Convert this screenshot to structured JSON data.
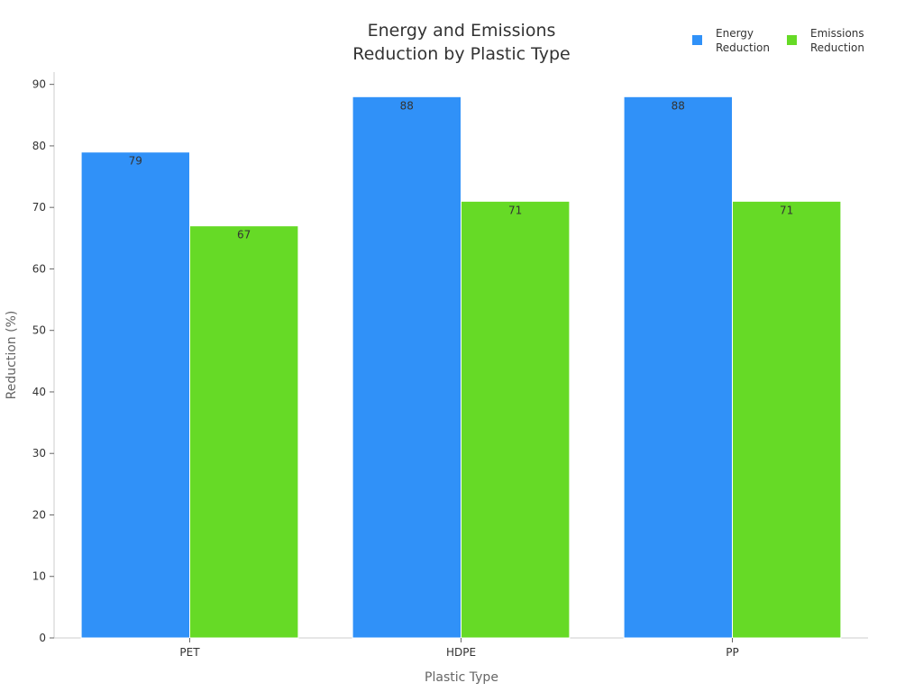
{
  "chart_data": {
    "type": "bar",
    "title_lines": [
      "Energy and Emissions",
      "Reduction by Plastic Type"
    ],
    "xlabel": "Plastic Type",
    "ylabel": "Reduction (%)",
    "categories": [
      "PET",
      "HDPE",
      "PP"
    ],
    "ylim": [
      0,
      92
    ],
    "yticks": [
      0,
      10,
      20,
      30,
      40,
      50,
      60,
      70,
      80,
      90
    ],
    "grid": false,
    "legend_position": "top-right",
    "series": [
      {
        "name_lines": [
          "Energy",
          "Reduction"
        ],
        "color": "#3091F8",
        "values": [
          79,
          88,
          88
        ]
      },
      {
        "name_lines": [
          "Emissions",
          "Reduction"
        ],
        "color": "#66DA26",
        "values": [
          67,
          71,
          71
        ]
      }
    ]
  }
}
